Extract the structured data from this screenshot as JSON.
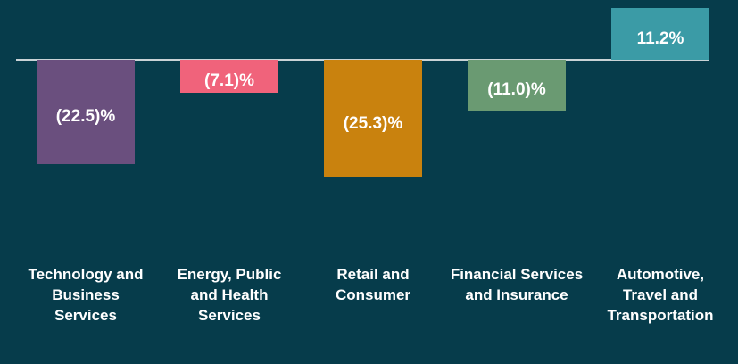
{
  "chart_data": {
    "type": "bar",
    "categories": [
      "Technology and Business Services",
      "Energy, Public and Health Services",
      "Retail and Consumer",
      "Financial Services and Insurance",
      "Automotive, Travel and Transportation"
    ],
    "values": [
      -22.5,
      -7.1,
      -25.3,
      -11.0,
      11.2
    ],
    "value_labels": [
      "(22.5)%",
      "(7.1)%",
      "(25.3)%",
      "(11.0)%",
      "11.2%"
    ],
    "colors": [
      "#6a4f7e",
      "#f0637b",
      "#c9820e",
      "#6a9a72",
      "#3b9ba6"
    ]
  }
}
